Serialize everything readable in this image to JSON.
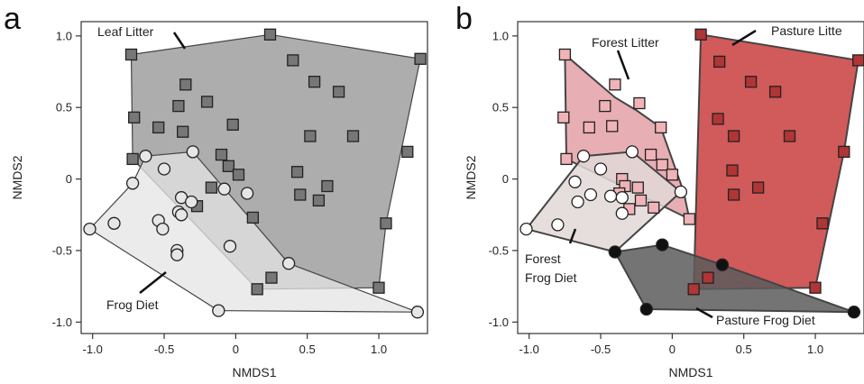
{
  "chart_data": [
    {
      "panel_label": "a",
      "type": "scatter",
      "xlabel": "NMDS1",
      "ylabel": "NMDS2",
      "xlim": [
        -1.08,
        1.34
      ],
      "ylim": [
        -1.08,
        1.1
      ],
      "xticks": [
        -1.0,
        -0.5,
        0,
        0.5,
        1.0
      ],
      "yticks": [
        -1.0,
        -0.5,
        0,
        0.5,
        1.0
      ],
      "xtick_labels": [
        "-1.0",
        "-0.5",
        "0",
        "0.5",
        "1.0"
      ],
      "ytick_labels": [
        "-1.0",
        "-0.5",
        "0",
        "0.5",
        "1.0"
      ],
      "grid": false,
      "series": [
        {
          "name": "Leaf Litter",
          "marker": "square",
          "color": "#777777",
          "hull_color": "#a9a9a9",
          "hull": [
            [
              -0.73,
              0.87
            ],
            [
              0.24,
              1.01
            ],
            [
              1.29,
              0.84
            ],
            [
              1.05,
              -0.31
            ],
            [
              1.0,
              -0.76
            ],
            [
              0.15,
              -0.77
            ],
            [
              -0.72,
              0.14
            ]
          ],
          "points": [
            [
              -0.73,
              0.87
            ],
            [
              0.24,
              1.01
            ],
            [
              0.4,
              0.83
            ],
            [
              1.29,
              0.84
            ],
            [
              -0.35,
              0.66
            ],
            [
              0.55,
              0.68
            ],
            [
              0.72,
              0.61
            ],
            [
              -0.71,
              0.43
            ],
            [
              -0.4,
              0.51
            ],
            [
              -0.2,
              0.54
            ],
            [
              -0.54,
              0.36
            ],
            [
              -0.37,
              0.33
            ],
            [
              -0.02,
              0.38
            ],
            [
              0.52,
              0.3
            ],
            [
              0.82,
              0.3
            ],
            [
              1.2,
              0.19
            ],
            [
              -0.72,
              0.14
            ],
            [
              -0.1,
              0.17
            ],
            [
              -0.05,
              0.09
            ],
            [
              0.02,
              0.03
            ],
            [
              0.43,
              0.05
            ],
            [
              0.64,
              -0.05
            ],
            [
              -0.17,
              -0.06
            ],
            [
              0.45,
              -0.11
            ],
            [
              0.58,
              -0.15
            ],
            [
              -0.27,
              -0.19
            ],
            [
              0.12,
              -0.27
            ],
            [
              1.05,
              -0.31
            ],
            [
              0.25,
              -0.69
            ],
            [
              0.15,
              -0.77
            ],
            [
              1.0,
              -0.76
            ]
          ]
        },
        {
          "name": "Frog Diet",
          "marker": "circle",
          "color": "#e6e6e6",
          "hull_color": "#e4e4e4",
          "hull": [
            [
              -1.02,
              -0.35
            ],
            [
              -0.72,
              -0.03
            ],
            [
              -0.63,
              0.16
            ],
            [
              -0.3,
              0.19
            ],
            [
              0.37,
              -0.59
            ],
            [
              1.27,
              -0.93
            ],
            [
              -0.12,
              -0.92
            ]
          ],
          "points": [
            [
              -0.63,
              0.16
            ],
            [
              -0.3,
              0.19
            ],
            [
              -0.5,
              0.07
            ],
            [
              -0.72,
              -0.03
            ],
            [
              -0.08,
              -0.07
            ],
            [
              0.08,
              -0.1
            ],
            [
              -0.38,
              -0.13
            ],
            [
              -0.31,
              -0.16
            ],
            [
              -0.4,
              -0.23
            ],
            [
              -0.38,
              -0.25
            ],
            [
              -0.54,
              -0.29
            ],
            [
              -0.85,
              -0.31
            ],
            [
              -0.51,
              -0.35
            ],
            [
              -1.02,
              -0.35
            ],
            [
              -0.04,
              -0.47
            ],
            [
              -0.41,
              -0.5
            ],
            [
              -0.41,
              -0.53
            ],
            [
              0.37,
              -0.59
            ],
            [
              -0.12,
              -0.92
            ],
            [
              1.27,
              -0.93
            ]
          ]
        }
      ],
      "annotations": [
        {
          "text": "Leaf Litter",
          "at": [
            -0.35,
            0.98
          ]
        },
        {
          "text": "Frog Diet",
          "at": [
            -0.5,
            -0.65
          ]
        }
      ]
    },
    {
      "panel_label": "b",
      "type": "scatter",
      "xlabel": "NMDS1",
      "ylabel": "NMDS2",
      "xlim": [
        -1.08,
        1.34
      ],
      "ylim": [
        -1.08,
        1.1
      ],
      "xticks": [
        -1.0,
        -0.5,
        0,
        0.5,
        1.0
      ],
      "yticks": [
        -1.0,
        -0.5,
        0,
        0.5,
        1.0
      ],
      "xtick_labels": [
        "-1.0",
        "-0.5",
        "0",
        "0.5",
        "1.0"
      ],
      "ytick_labels": [
        "-1.0",
        "-0.5",
        "0",
        "0.5",
        "1.0"
      ],
      "grid": false,
      "series": [
        {
          "name": "Pasture Litter",
          "marker": "square",
          "color": "#b03535",
          "hull_color": "#c93d3d",
          "hull": [
            [
              0.2,
              1.01
            ],
            [
              1.3,
              0.83
            ],
            [
              1.2,
              0.19
            ],
            [
              1.0,
              -0.76
            ],
            [
              0.15,
              -0.77
            ]
          ],
          "points": [
            [
              0.2,
              1.01
            ],
            [
              1.3,
              0.83
            ],
            [
              0.33,
              0.82
            ],
            [
              0.55,
              0.68
            ],
            [
              0.72,
              0.61
            ],
            [
              0.32,
              0.42
            ],
            [
              0.43,
              0.3
            ],
            [
              0.82,
              0.3
            ],
            [
              1.2,
              0.19
            ],
            [
              0.42,
              0.06
            ],
            [
              0.6,
              -0.06
            ],
            [
              0.43,
              -0.11
            ],
            [
              1.05,
              -0.31
            ],
            [
              0.25,
              -0.69
            ],
            [
              0.15,
              -0.77
            ],
            [
              1.0,
              -0.76
            ]
          ]
        },
        {
          "name": "Forest Litter",
          "marker": "square",
          "color": "#f0b3b8",
          "hull_color": "#e3a0a7",
          "hull": [
            [
              -0.75,
              0.87
            ],
            [
              -0.4,
              0.57
            ],
            [
              -0.25,
              0.48
            ],
            [
              -0.08,
              0.36
            ],
            [
              0.08,
              -0.09
            ],
            [
              0.12,
              -0.28
            ],
            [
              -0.74,
              0.14
            ]
          ],
          "points": [
            [
              -0.75,
              0.87
            ],
            [
              -0.4,
              0.66
            ],
            [
              -0.47,
              0.51
            ],
            [
              -0.23,
              0.53
            ],
            [
              -0.76,
              0.43
            ],
            [
              -0.58,
              0.36
            ],
            [
              -0.42,
              0.37
            ],
            [
              -0.08,
              0.36
            ],
            [
              -0.74,
              0.14
            ],
            [
              -0.15,
              0.17
            ],
            [
              -0.07,
              0.1
            ],
            [
              0.0,
              0.03
            ],
            [
              -0.35,
              0.0
            ],
            [
              -0.33,
              -0.05
            ],
            [
              -0.24,
              -0.06
            ],
            [
              -0.37,
              -0.1
            ],
            [
              -0.22,
              -0.15
            ],
            [
              -0.13,
              -0.2
            ],
            [
              -0.3,
              -0.21
            ],
            [
              0.12,
              -0.28
            ]
          ]
        },
        {
          "name": "Forest Frog Diet",
          "marker": "circle",
          "color": "#ffffff",
          "hull_color": "#e0d8d6",
          "hull": [
            [
              -1.02,
              -0.35
            ],
            [
              -0.62,
              0.16
            ],
            [
              -0.28,
              0.19
            ],
            [
              0.06,
              -0.09
            ],
            [
              -0.4,
              -0.51
            ]
          ],
          "points": [
            [
              -0.62,
              0.16
            ],
            [
              -0.28,
              0.19
            ],
            [
              -0.5,
              0.07
            ],
            [
              -0.68,
              -0.02
            ],
            [
              0.06,
              -0.09
            ],
            [
              -0.57,
              -0.11
            ],
            [
              -0.43,
              -0.12
            ],
            [
              -0.35,
              -0.13
            ],
            [
              -0.35,
              -0.24
            ],
            [
              -0.66,
              -0.16
            ],
            [
              -0.8,
              -0.32
            ],
            [
              -1.02,
              -0.35
            ],
            [
              -0.4,
              -0.51
            ]
          ]
        },
        {
          "name": "Pasture Frog Diet",
          "marker": "circle",
          "color": "#111111",
          "hull_color": "#5c5c5c",
          "hull": [
            [
              -0.4,
              -0.51
            ],
            [
              -0.07,
              -0.46
            ],
            [
              0.35,
              -0.6
            ],
            [
              1.27,
              -0.93
            ],
            [
              -0.18,
              -0.91
            ]
          ],
          "points": [
            [
              -0.4,
              -0.51
            ],
            [
              -0.07,
              -0.46
            ],
            [
              0.35,
              -0.6
            ],
            [
              -0.18,
              -0.91
            ],
            [
              1.27,
              -0.93
            ]
          ]
        }
      ],
      "annotations": [
        {
          "text": "Forest Litter",
          "at": [
            -0.5,
            0.95
          ]
        },
        {
          "text": "Pasture Litte",
          "at": [
            0.75,
            1.03
          ]
        },
        {
          "text": "Forest",
          "at": [
            -0.95,
            -0.57
          ]
        },
        {
          "text": "Frog Diet",
          "at": [
            -0.95,
            -0.69
          ]
        },
        {
          "text": "Pasture Frog Diet",
          "at": [
            0.65,
            -1.03
          ]
        }
      ]
    }
  ]
}
